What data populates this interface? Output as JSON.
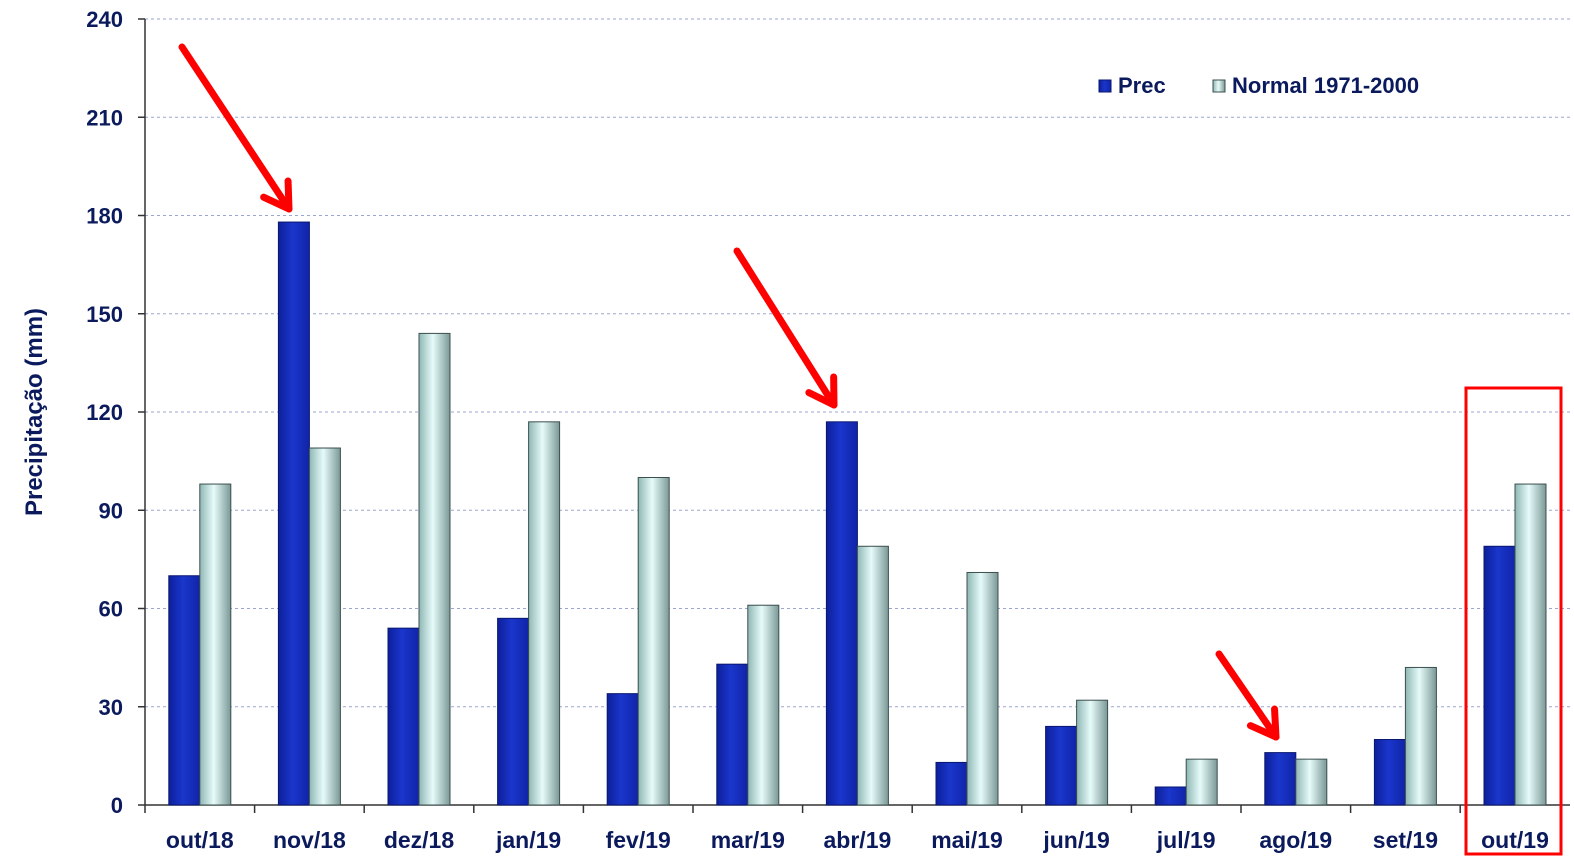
{
  "chart_data": {
    "type": "bar",
    "title": "",
    "xlabel": "",
    "ylabel": "Precipitação (mm)",
    "ylim": [
      0,
      240
    ],
    "yticks": [
      0,
      30,
      60,
      90,
      120,
      150,
      180,
      210,
      240
    ],
    "grid": true,
    "legend_position": "top-right",
    "categories": [
      "out/18",
      "nov/18",
      "dez/18",
      "jan/19",
      "fev/19",
      "mar/19",
      "abr/19",
      "mai/19",
      "jun/19",
      "jul/19",
      "ago/19",
      "set/19",
      "out/19"
    ],
    "series": [
      {
        "name": "Prec",
        "color": "#1530c0",
        "values": [
          70,
          178,
          54,
          57,
          34,
          43,
          117,
          13,
          24,
          5.5,
          16,
          20,
          79
        ]
      },
      {
        "name": "Normal 1971-2000",
        "color": "#c6f0ee",
        "values": [
          98,
          109,
          144,
          117,
          100,
          61,
          79,
          71,
          32,
          14,
          14,
          42,
          98
        ]
      }
    ],
    "annotations": {
      "arrow_color": "#ff0000",
      "arrows_pointing_to": [
        "nov/18",
        "abr/19",
        "ago/19"
      ],
      "highlight_box_category": "out/19"
    }
  }
}
